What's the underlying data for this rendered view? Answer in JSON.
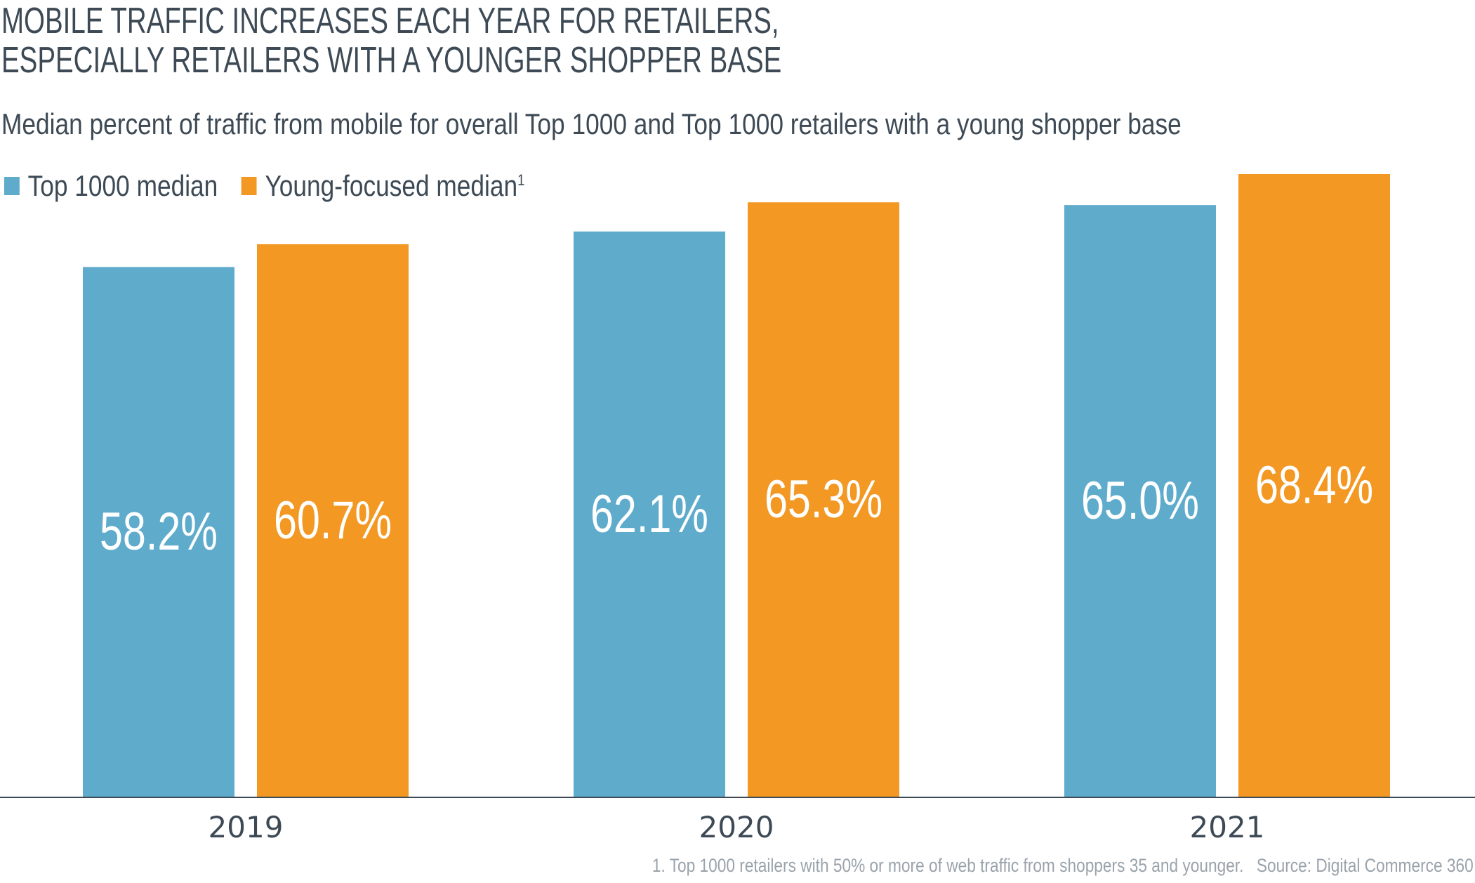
{
  "title_lines": [
    "MOBILE TRAFFIC INCREASES EACH YEAR FOR RETAILERS,",
    "ESPECIALLY RETAILERS WITH A YOUNGER SHOPPER BASE"
  ],
  "subtitle": "Median percent of traffic from mobile for overall Top 1000 and Top 1000 retailers with a young shopper base",
  "legend": [
    {
      "label": "Top 1000 median",
      "sup": "",
      "color": "#5eabcc"
    },
    {
      "label": "Young-focused median",
      "sup": "1",
      "color": "#f29823"
    }
  ],
  "footnote": "1. Top 1000 retailers with 50% or more of web traffic from shoppers 35 and younger.",
  "source": "Source: Digital Commerce 360",
  "chart_data": {
    "type": "bar",
    "title": "MOBILE TRAFFIC INCREASES EACH YEAR FOR RETAILERS, ESPECIALLY RETAILERS WITH A YOUNGER SHOPPER BASE",
    "subtitle": "Median percent of traffic from mobile for overall Top 1000 and Top 1000 retailers with a young shopper base",
    "categories": [
      "2019",
      "2020",
      "2021"
    ],
    "series": [
      {
        "name": "Top 1000 median",
        "values": [
          58.2,
          62.1,
          65.0
        ],
        "labels": [
          "58.2%",
          "62.1%",
          "65.0%"
        ],
        "color": "#5eabcc"
      },
      {
        "name": "Young-focused median",
        "values": [
          60.7,
          65.3,
          68.4
        ],
        "labels": [
          "60.7%",
          "65.3%",
          "68.4%"
        ],
        "color": "#f29823"
      }
    ],
    "ylim": [
      0,
      68.4
    ],
    "xlabel": "",
    "ylabel": "",
    "grid": false,
    "legend_position": "top-left"
  }
}
